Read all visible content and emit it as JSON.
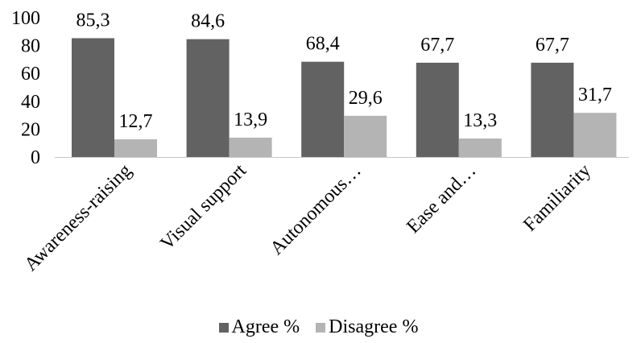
{
  "chart_data": {
    "type": "bar",
    "categories": [
      "Awareness-raising",
      "Visual support",
      "Autonomous…",
      "Ease and…",
      "Familiarity"
    ],
    "series": [
      {
        "name": "Agree %",
        "color": "#626262",
        "values": [
          85.3,
          84.6,
          68.4,
          67.7,
          67.7
        ],
        "labels": [
          "85,3",
          "84,6",
          "68,4",
          "67,7",
          "67,7"
        ]
      },
      {
        "name": "Disagree %",
        "color": "#b4b4b4",
        "values": [
          12.7,
          13.9,
          29.6,
          13.3,
          31.7
        ],
        "labels": [
          "12,7",
          "13,9",
          "29,6",
          "13,3",
          "31,7"
        ]
      }
    ],
    "y_ticks": [
      "0",
      "20",
      "40",
      "60",
      "80",
      "100"
    ],
    "ylim": [
      0,
      100
    ],
    "grid": false,
    "legend_position": "bottom",
    "title": "",
    "xlabel": "",
    "ylabel": ""
  }
}
